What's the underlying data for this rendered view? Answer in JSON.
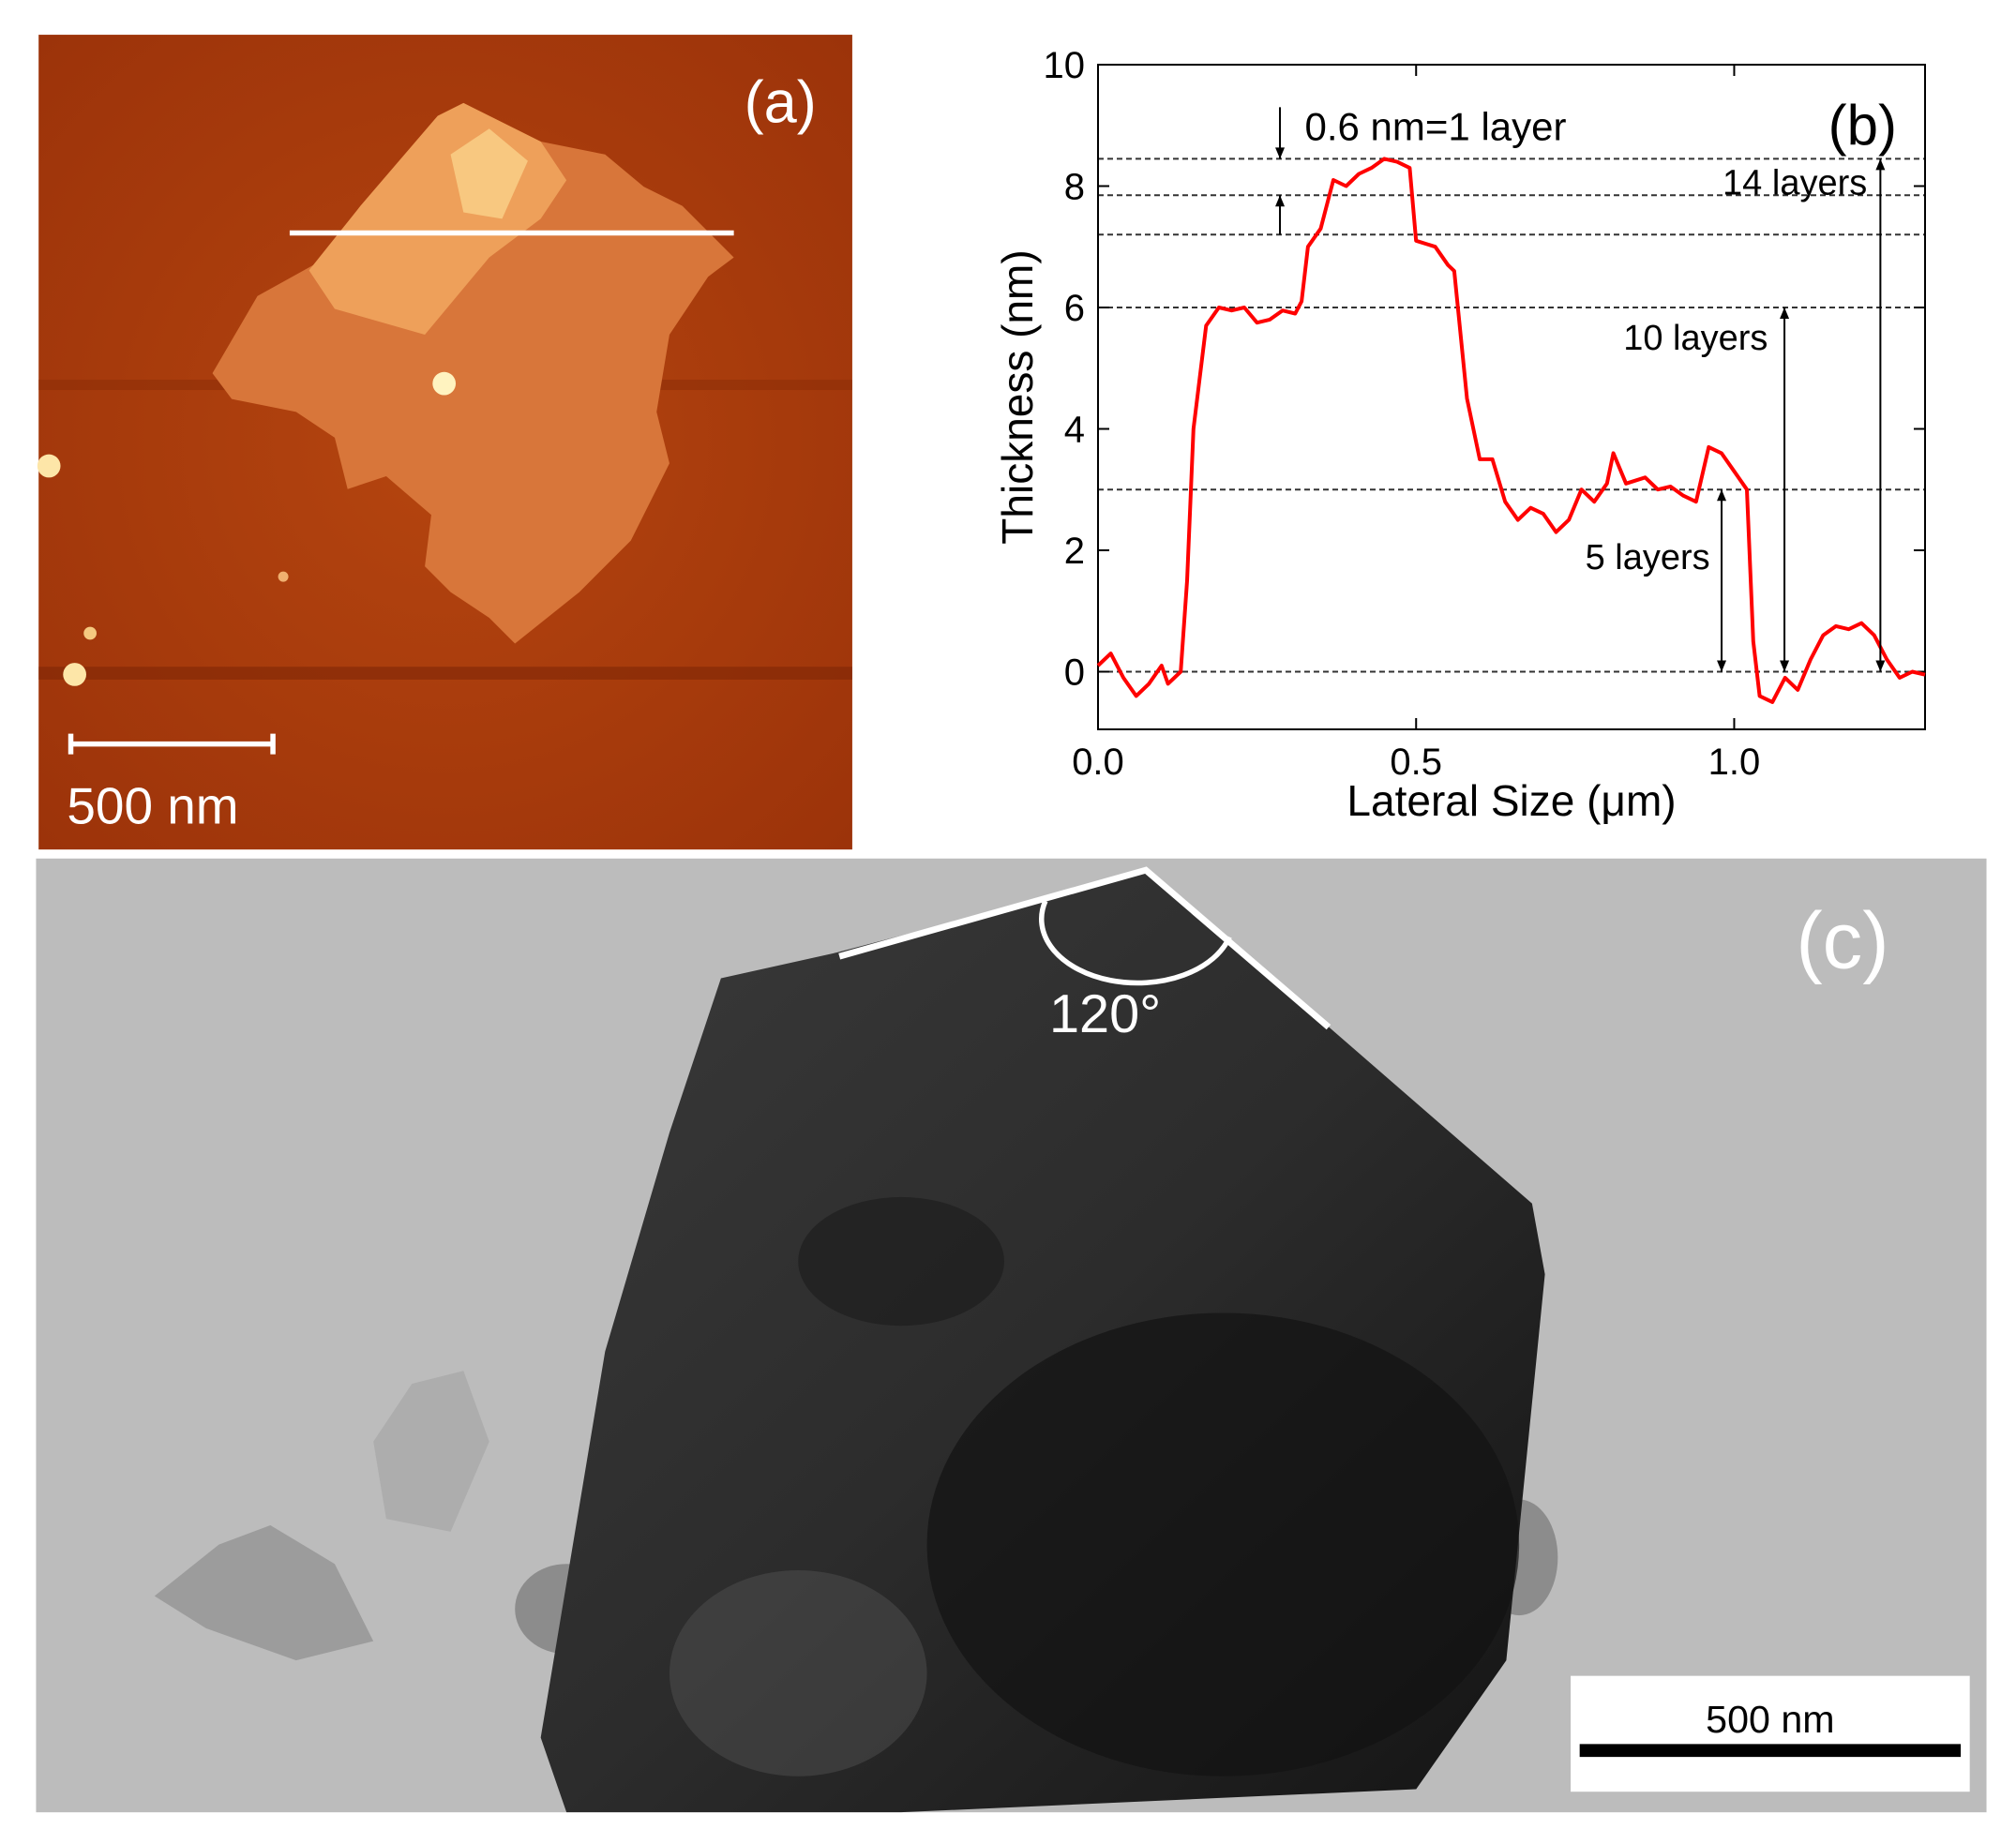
{
  "panel_a": {
    "label": "(a)",
    "scale_bar": "500 nm"
  },
  "panel_c": {
    "label": "(c)",
    "angle": "120°",
    "scale_bar": "500 nm"
  },
  "chart_data": {
    "type": "line",
    "label": "(b)",
    "x_label": "Lateral Size (μm)",
    "y_label": "Thickness (nm)",
    "xlim": [
      0,
      1.3
    ],
    "ylim": [
      -0.95,
      10
    ],
    "xticks": [
      {
        "value": 0,
        "label": "0.0"
      },
      0.5,
      {
        "value": 1,
        "label": "1.0"
      }
    ],
    "yticks": [
      0,
      2,
      4,
      6,
      8,
      10
    ],
    "color": "#ff0000",
    "x": [
      0,
      0.02,
      0.04,
      0.06,
      0.08,
      0.1,
      0.11,
      0.13,
      0.14,
      0.15,
      0.17,
      0.19,
      0.21,
      0.23,
      0.25,
      0.27,
      0.29,
      0.31,
      0.32,
      0.33,
      0.35,
      0.37,
      0.39,
      0.41,
      0.43,
      0.45,
      0.47,
      0.49,
      0.5,
      0.53,
      0.55,
      0.56,
      0.58,
      0.6,
      0.62,
      0.64,
      0.66,
      0.68,
      0.7,
      0.72,
      0.74,
      0.76,
      0.78,
      0.8,
      0.81,
      0.83,
      0.86,
      0.88,
      0.9,
      0.92,
      0.94,
      0.96,
      0.98,
      1.0,
      1.02,
      1.03,
      1.04,
      1.06,
      1.08,
      1.1,
      1.12,
      1.14,
      1.16,
      1.18,
      1.2,
      1.22,
      1.24,
      1.26,
      1.28,
      1.3
    ],
    "values": [
      0.1,
      0.3,
      -0.1,
      -0.4,
      -0.2,
      0.1,
      -0.2,
      0,
      1.5,
      4,
      5.7,
      6.0,
      5.95,
      6.0,
      5.75,
      5.8,
      5.95,
      5.9,
      6.1,
      7.0,
      7.3,
      8.1,
      8.0,
      8.2,
      8.3,
      8.45,
      8.4,
      8.3,
      7.1,
      7.0,
      6.7,
      6.6,
      4.5,
      3.5,
      3.5,
      2.8,
      2.5,
      2.7,
      2.6,
      2.3,
      2.5,
      3.0,
      2.8,
      3.1,
      3.6,
      3.1,
      3.2,
      3.0,
      3.05,
      2.9,
      2.8,
      3.7,
      3.6,
      3.3,
      3.0,
      0.5,
      -0.4,
      -0.5,
      -0.1,
      -0.3,
      0.2,
      0.6,
      0.75,
      0.7,
      0.8,
      0.6,
      0.2,
      -0.1,
      0,
      -0.05
    ],
    "reference_lines": [
      8.45,
      7.85,
      7.2,
      6,
      3,
      0
    ],
    "annotations": [
      "0.6 nm=1 layer",
      "14 layers",
      "10 layers",
      "5 layers"
    ]
  }
}
